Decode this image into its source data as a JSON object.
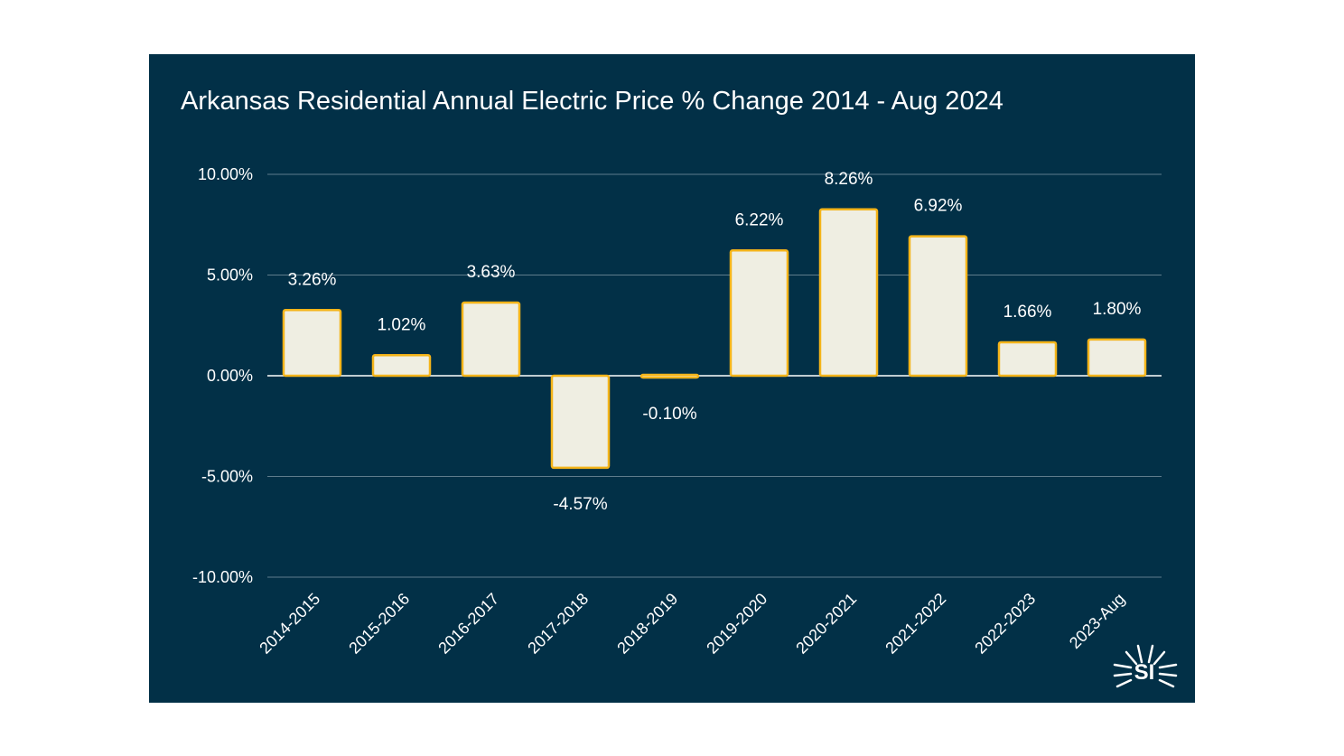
{
  "colors": {
    "background": "#023047",
    "bar_fill": "#EFEEE2",
    "bar_stroke": "#F4B41A",
    "text": "#ffffff",
    "gridline": "#5f7d8c"
  },
  "chart_data": {
    "type": "bar",
    "title": "Arkansas Residential Annual Electric Price % Change 2014 - Aug 2024",
    "xlabel": "",
    "ylabel": "",
    "categories": [
      "2014-2015",
      "2015-2016",
      "2016-2017",
      "2017-2018",
      "2018-2019",
      "2019-2020",
      "2020-2021",
      "2021-2022",
      "2022-2023",
      "2023-Aug"
    ],
    "values": [
      3.26,
      1.02,
      3.63,
      -4.57,
      -0.1,
      6.22,
      8.26,
      6.92,
      1.66,
      1.8
    ],
    "data_labels": [
      "3.26%",
      "1.02%",
      "3.63%",
      "-4.57%",
      "-0.10%",
      "6.22%",
      "8.26%",
      "6.92%",
      "1.66%",
      "1.80%"
    ],
    "ylim": [
      -10,
      10
    ],
    "yticks": [
      10,
      5,
      0,
      -5,
      -10
    ],
    "ytick_labels": [
      "10.00%",
      "5.00%",
      "0.00%",
      "-5.00%",
      "-10.00%"
    ],
    "grid": true,
    "legend": "none"
  },
  "logo": {
    "text": "SI"
  }
}
